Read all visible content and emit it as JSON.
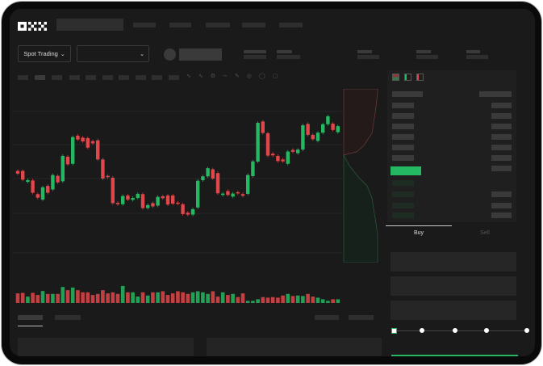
{
  "brand": {
    "logo": "OKX"
  },
  "toolbar": {
    "market_type": "Spot Trading",
    "pair_select_icon": "chevron-down-icon"
  },
  "order_form": {
    "tabs": [
      {
        "label": "Buy",
        "active": true
      },
      {
        "label": "Sell",
        "active": false
      }
    ],
    "slider_steps": 5,
    "slider_value_percent": 0
  },
  "colors": {
    "up": "#25b862",
    "down": "#e0464a",
    "background": "#1a1a1a",
    "accent": "#25b862"
  },
  "orderbook": {
    "view_icons": [
      "orderbook-both-icon",
      "orderbook-bids-icon",
      "orderbook-asks-icon"
    ]
  },
  "chart_data": {
    "type": "candlestick",
    "candles": [
      [
        170,
        160
      ],
      [
        170,
        138
      ],
      [
        130,
        136
      ],
      [
        135,
        90
      ],
      [
        85,
        72
      ],
      [
        65,
        110
      ],
      [
        115,
        90
      ],
      [
        102,
        155
      ],
      [
        152,
        128
      ],
      [
        132,
        225
      ],
      [
        222,
        194
      ],
      [
        196,
        294
      ],
      [
        299,
        285
      ],
      [
        292,
        278
      ],
      [
        290,
        255
      ],
      [
        279,
        271
      ],
      [
        282,
        212
      ],
      [
        212,
        142
      ],
      [
        152,
        147
      ],
      [
        145,
        52
      ],
      [
        53,
        48
      ],
      [
        48,
        78
      ],
      [
        80,
        65
      ],
      [
        64,
        71
      ],
      [
        71,
        86
      ],
      [
        85,
        34
      ],
      [
        34,
        45
      ],
      [
        52,
        40
      ],
      [
        43,
        75
      ],
      [
        77,
        70
      ],
      [
        80,
        47
      ],
      [
        80,
        50
      ],
      [
        54,
        50
      ],
      [
        48,
        12
      ],
      [
        17,
        10
      ],
      [
        10,
        30
      ],
      [
        36,
        134
      ],
      [
        136,
        150
      ],
      [
        150,
        180
      ],
      [
        176,
        142
      ],
      [
        162,
        88
      ],
      [
        82,
        87
      ],
      [
        96,
        82
      ],
      [
        76,
        87
      ],
      [
        92,
        88
      ],
      [
        85,
        79
      ],
      [
        86,
        155
      ],
      [
        151,
        205
      ],
      [
        204,
        346
      ],
      [
        351,
        309
      ],
      [
        308,
        226
      ],
      [
        233,
        227
      ],
      [
        225,
        206
      ],
      [
        212,
        205
      ],
      [
        196,
        241
      ],
      [
        247,
        240
      ],
      [
        235,
        248
      ],
      [
        248,
        337
      ],
      [
        342,
        302
      ],
      [
        302,
        286
      ],
      [
        280,
        310
      ],
      [
        310,
        341
      ],
      [
        341,
        370
      ],
      [
        343,
        320
      ],
      [
        312,
        334
      ]
    ],
    "volumes": [
      36,
      38,
      24,
      38,
      30,
      45,
      34,
      34,
      34,
      60,
      48,
      58,
      48,
      40,
      40,
      30,
      34,
      48,
      36,
      40,
      34,
      64,
      40,
      40,
      24,
      40,
      28,
      40,
      40,
      44,
      30,
      36,
      44,
      40,
      34,
      40,
      44,
      40,
      34,
      44,
      24,
      40,
      30,
      34,
      22,
      36,
      8,
      8,
      14,
      22,
      20,
      22,
      20,
      28,
      34,
      26,
      28,
      26,
      34,
      24,
      20,
      14,
      8,
      14,
      14
    ]
  }
}
